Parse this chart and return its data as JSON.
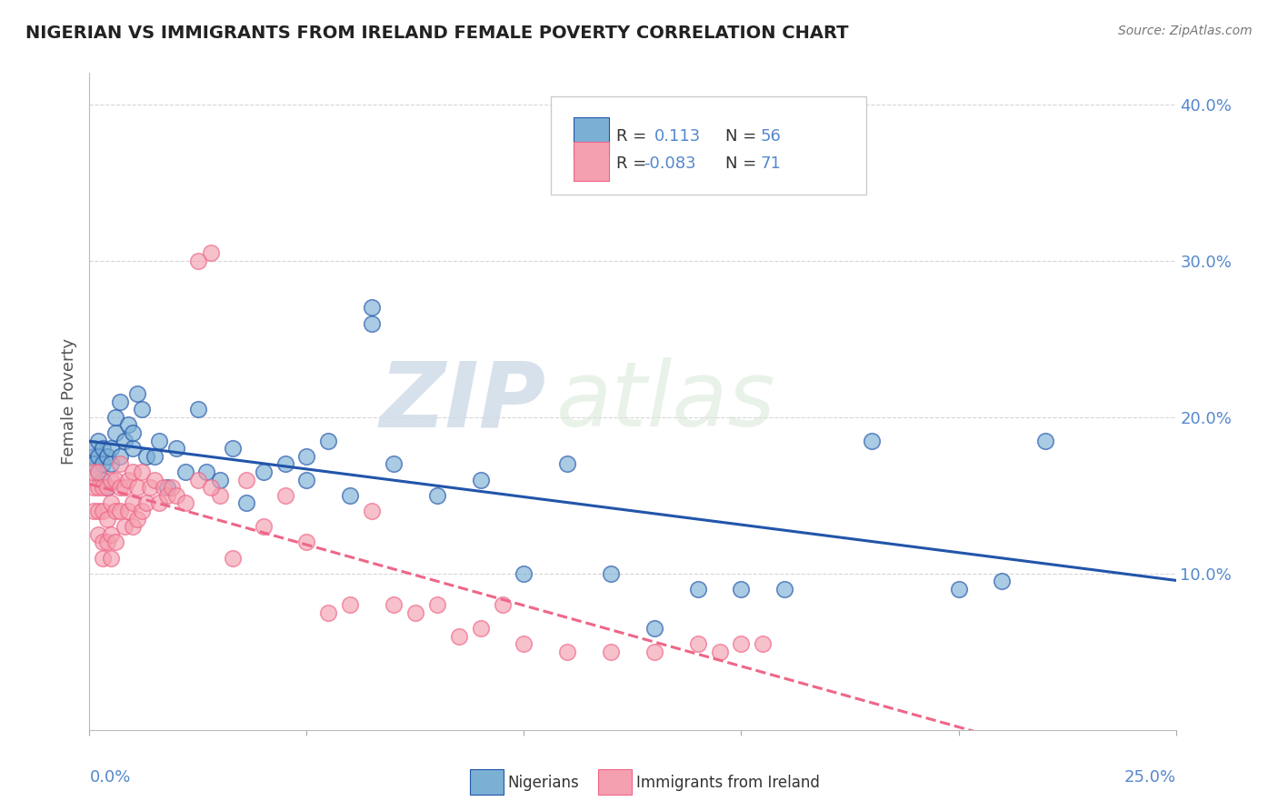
{
  "title": "NIGERIAN VS IMMIGRANTS FROM IRELAND FEMALE POVERTY CORRELATION CHART",
  "source_text": "Source: ZipAtlas.com",
  "ylabel": "Female Poverty",
  "xlim": [
    0.0,
    0.25
  ],
  "ylim": [
    0.0,
    0.42
  ],
  "yticks": [
    0.1,
    0.2,
    0.3,
    0.4
  ],
  "ytick_labels": [
    "10.0%",
    "20.0%",
    "30.0%",
    "40.0%"
  ],
  "xtick_left": "0.0%",
  "xtick_right": "25.0%",
  "blue_color": "#7BAFD4",
  "pink_color": "#F4A0B0",
  "blue_line_color": "#2255AA",
  "pink_line_color": "#EE6688",
  "watermark_color": "#D8E4EE",
  "background_color": "#FFFFFF",
  "grid_color": "#CCCCCC",
  "title_color": "#222222",
  "axis_label_color": "#5588CC",
  "legend_text_color": "#5588CC",
  "nigerians_x": [
    0.001,
    0.001,
    0.001,
    0.002,
    0.002,
    0.002,
    0.003,
    0.003,
    0.003,
    0.004,
    0.004,
    0.005,
    0.005,
    0.006,
    0.006,
    0.007,
    0.007,
    0.008,
    0.009,
    0.01,
    0.01,
    0.011,
    0.012,
    0.013,
    0.015,
    0.016,
    0.018,
    0.02,
    0.022,
    0.025,
    0.027,
    0.03,
    0.033,
    0.036,
    0.04,
    0.045,
    0.05,
    0.055,
    0.06,
    0.065,
    0.07,
    0.08,
    0.09,
    0.1,
    0.11,
    0.12,
    0.13,
    0.14,
    0.15,
    0.16,
    0.18,
    0.2,
    0.21,
    0.22,
    0.05,
    0.065
  ],
  "nigerians_y": [
    0.175,
    0.17,
    0.18,
    0.165,
    0.175,
    0.185,
    0.16,
    0.17,
    0.18,
    0.155,
    0.175,
    0.17,
    0.18,
    0.19,
    0.2,
    0.175,
    0.21,
    0.185,
    0.195,
    0.18,
    0.19,
    0.215,
    0.205,
    0.175,
    0.175,
    0.185,
    0.155,
    0.18,
    0.165,
    0.205,
    0.165,
    0.16,
    0.18,
    0.145,
    0.165,
    0.17,
    0.175,
    0.185,
    0.15,
    0.26,
    0.17,
    0.15,
    0.16,
    0.1,
    0.17,
    0.1,
    0.065,
    0.09,
    0.09,
    0.09,
    0.185,
    0.09,
    0.095,
    0.185,
    0.16,
    0.27
  ],
  "ireland_x": [
    0.001,
    0.001,
    0.001,
    0.002,
    0.002,
    0.002,
    0.002,
    0.003,
    0.003,
    0.003,
    0.003,
    0.004,
    0.004,
    0.004,
    0.005,
    0.005,
    0.005,
    0.005,
    0.006,
    0.006,
    0.006,
    0.007,
    0.007,
    0.007,
    0.008,
    0.008,
    0.009,
    0.009,
    0.01,
    0.01,
    0.01,
    0.011,
    0.011,
    0.012,
    0.012,
    0.013,
    0.014,
    0.015,
    0.016,
    0.017,
    0.018,
    0.019,
    0.02,
    0.022,
    0.025,
    0.028,
    0.03,
    0.033,
    0.036,
    0.04,
    0.045,
    0.05,
    0.055,
    0.06,
    0.065,
    0.07,
    0.075,
    0.08,
    0.085,
    0.09,
    0.095,
    0.1,
    0.11,
    0.12,
    0.13,
    0.14,
    0.145,
    0.15,
    0.155,
    0.025,
    0.028
  ],
  "ireland_y": [
    0.14,
    0.155,
    0.165,
    0.125,
    0.14,
    0.155,
    0.165,
    0.11,
    0.12,
    0.14,
    0.155,
    0.12,
    0.135,
    0.155,
    0.11,
    0.125,
    0.145,
    0.16,
    0.12,
    0.14,
    0.16,
    0.14,
    0.155,
    0.17,
    0.13,
    0.155,
    0.14,
    0.16,
    0.13,
    0.145,
    0.165,
    0.135,
    0.155,
    0.14,
    0.165,
    0.145,
    0.155,
    0.16,
    0.145,
    0.155,
    0.15,
    0.155,
    0.15,
    0.145,
    0.3,
    0.305,
    0.15,
    0.11,
    0.16,
    0.13,
    0.15,
    0.12,
    0.075,
    0.08,
    0.14,
    0.08,
    0.075,
    0.08,
    0.06,
    0.065,
    0.08,
    0.055,
    0.05,
    0.05,
    0.05,
    0.055,
    0.05,
    0.055,
    0.055,
    0.16,
    0.155
  ]
}
